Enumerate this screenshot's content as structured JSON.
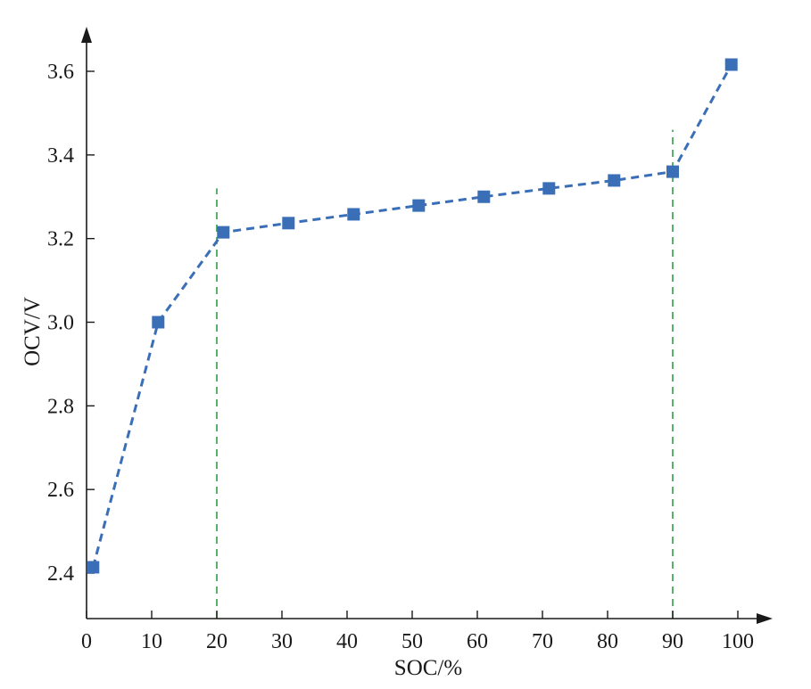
{
  "chart_data": {
    "type": "line",
    "title": "",
    "xlabel": "SOC/%",
    "ylabel": "OCV/V",
    "xlim": [
      0,
      100
    ],
    "ylim": [
      2.3,
      3.68
    ],
    "x_ticks": [
      0,
      10,
      20,
      30,
      40,
      50,
      60,
      70,
      80,
      90,
      100
    ],
    "y_ticks": [
      2.4,
      2.6,
      2.8,
      3.0,
      3.2,
      3.4,
      3.6
    ],
    "y_tick_labels": [
      "2.4",
      "2.6",
      "2.8",
      "3.0",
      "3.2",
      "3.4",
      "3.6"
    ],
    "grid": false,
    "legend": "none",
    "series": [
      {
        "marker": "square",
        "line_style": "dashed",
        "color": "#3a6fb7",
        "x": [
          1,
          11,
          21,
          31,
          41,
          51,
          61,
          71,
          81,
          90,
          99
        ],
        "y": [
          2.414,
          3.0,
          3.215,
          3.237,
          3.258,
          3.279,
          3.3,
          3.32,
          3.339,
          3.36,
          3.616
        ]
      }
    ],
    "reference_lines": [
      {
        "x": 20,
        "y_top": 3.32,
        "color": "#2e9e45",
        "line_style": "dashed"
      },
      {
        "x": 90,
        "y_top": 3.46,
        "color": "#2e9e45",
        "line_style": "dashed"
      }
    ]
  }
}
